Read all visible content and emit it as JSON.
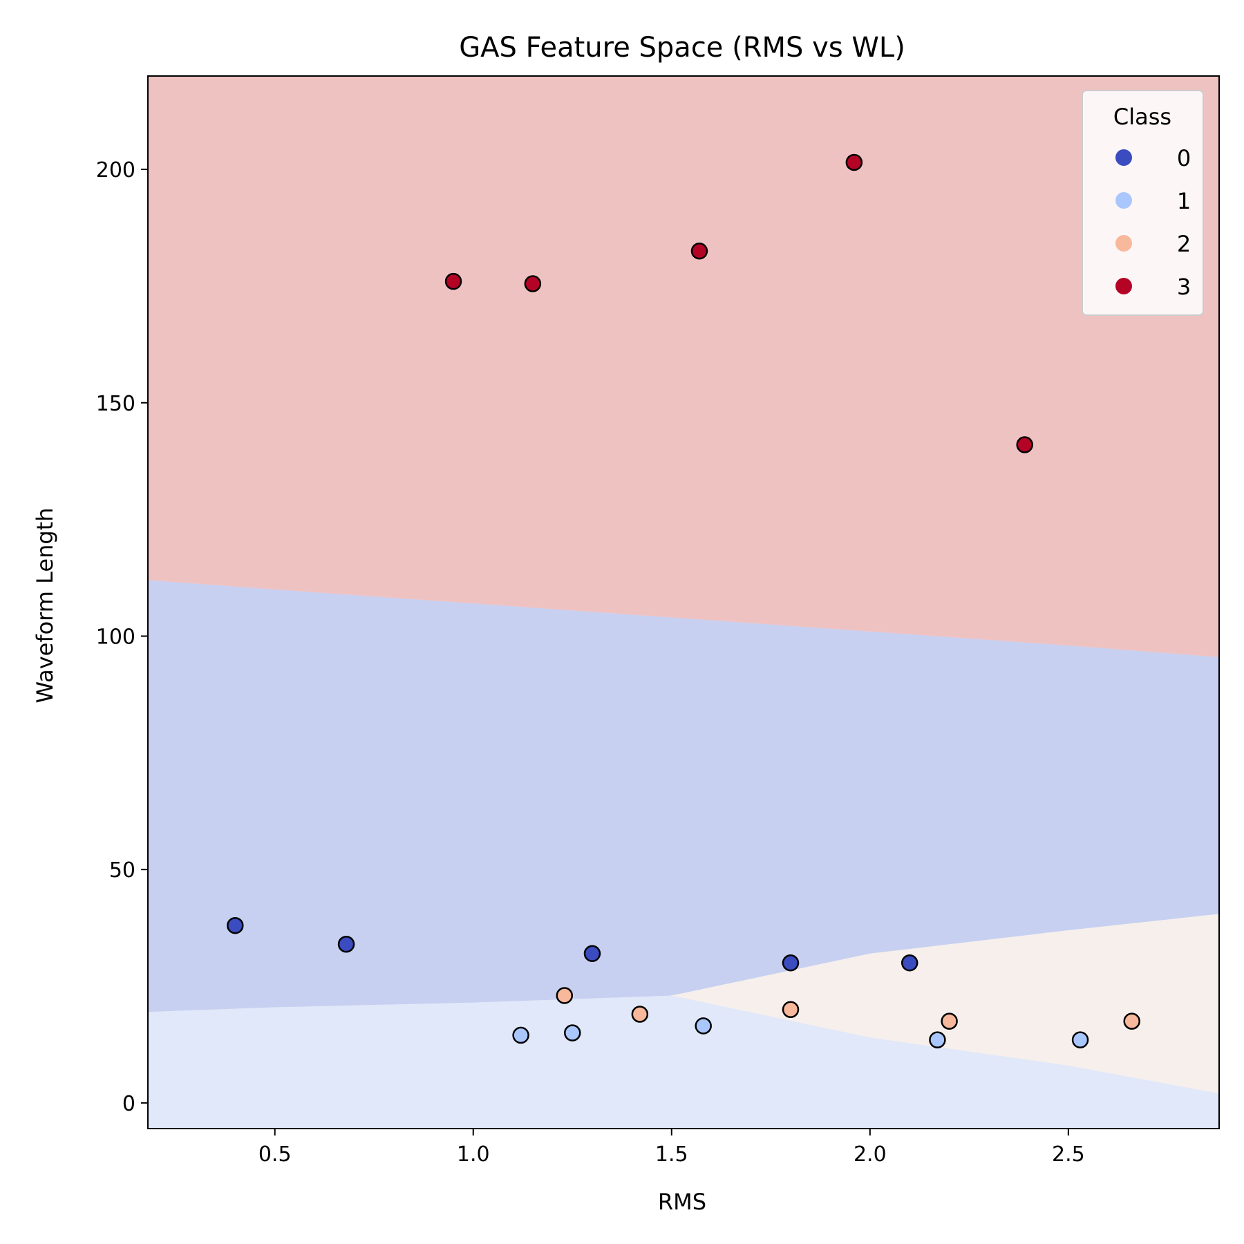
{
  "chart_data": {
    "type": "scatter",
    "title": "GAS Feature Space (RMS vs WL)",
    "xlabel": "RMS",
    "ylabel": "Waveform Length",
    "xlim": [
      0.18,
      2.88
    ],
    "ylim": [
      -5.5,
      220
    ],
    "xticks": [
      0.5,
      1.0,
      1.5,
      2.0,
      2.5
    ],
    "xtick_labels": [
      "0.5",
      "1.0",
      "1.5",
      "2.0",
      "2.5"
    ],
    "yticks": [
      0,
      50,
      100,
      150,
      200
    ],
    "ytick_labels": [
      "0",
      "50",
      "100",
      "150",
      "200"
    ],
    "grid": false,
    "legend": {
      "title": "Class",
      "placement": "top-right",
      "entries": [
        "0",
        "1",
        "2",
        "3"
      ]
    },
    "class_colors": {
      "0": "#3b4cc0",
      "1": "#aac7fd",
      "2": "#f7b89c",
      "3": "#b40426"
    },
    "region_colors": {
      "0": "#c7d0f0",
      "1": "#e0e8f9",
      "2": "#f6efec",
      "3": "#efc2c2"
    },
    "decision_boundaries": {
      "x": [
        0.18,
        0.5,
        1.0,
        1.5,
        2.0,
        2.5,
        2.88
      ],
      "class3_lower": [
        112,
        110,
        107,
        104,
        101,
        98,
        95.5
      ],
      "class0_lower": [
        19.5,
        20.5,
        21.5,
        23,
        32,
        37,
        40.5
      ],
      "class2_upper_start_x": 1.33,
      "class2_lower": [
        null,
        null,
        null,
        23,
        14,
        8,
        2
      ]
    },
    "series": [
      {
        "name": "0",
        "points": [
          [
            0.4,
            38
          ],
          [
            0.68,
            34
          ],
          [
            1.3,
            32
          ],
          [
            1.8,
            30
          ],
          [
            2.1,
            30
          ]
        ]
      },
      {
        "name": "1",
        "points": [
          [
            1.12,
            14.5
          ],
          [
            1.25,
            15
          ],
          [
            1.58,
            16.5
          ],
          [
            2.17,
            13.5
          ],
          [
            2.53,
            13.5
          ]
        ]
      },
      {
        "name": "2",
        "points": [
          [
            1.23,
            23
          ],
          [
            1.42,
            19
          ],
          [
            1.8,
            20
          ],
          [
            2.2,
            17.5
          ],
          [
            2.66,
            17.5
          ]
        ]
      },
      {
        "name": "3",
        "points": [
          [
            0.95,
            176
          ],
          [
            1.15,
            175.5
          ],
          [
            1.57,
            182.5
          ],
          [
            1.96,
            201.5
          ],
          [
            2.39,
            141
          ]
        ]
      }
    ]
  }
}
